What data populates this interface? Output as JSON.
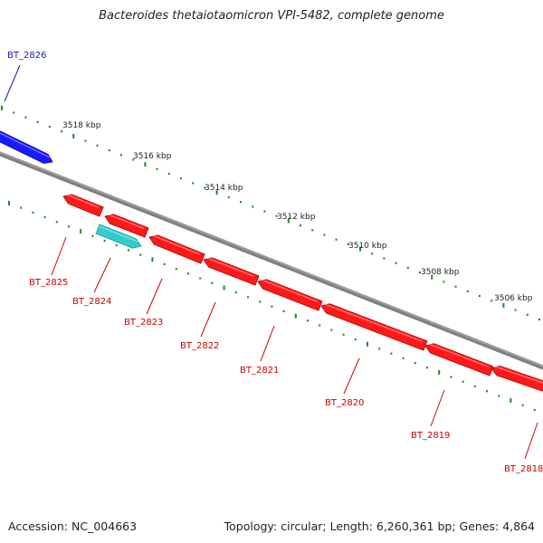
{
  "title": "Bacteroides thetaiotaomicron VPI-5482, complete genome",
  "accession": "Accession: NC_004663",
  "summary": "Topology: circular; Length: 6,260,361 bp; Genes: 4,864",
  "colors": {
    "backbone": "#808080",
    "tick": "#1f8a1f",
    "forward_gene": "#1a1aff",
    "reverse_gene": "#ff1a1a",
    "rna_gene": "#33cccc",
    "forward_label": "#1a1ab0",
    "reverse_label": "#cc0000"
  },
  "ticks": [
    {
      "label": "3518 kbp"
    },
    {
      "label": "3516 kbp"
    },
    {
      "label": "3514 kbp"
    },
    {
      "label": "3512 kbp"
    },
    {
      "label": "3510 kbp"
    },
    {
      "label": "3508 kbp"
    },
    {
      "label": "3506 kbp"
    }
  ],
  "genes": [
    {
      "name": "BT_2826",
      "strand": "forward"
    },
    {
      "name": "BT_2825",
      "strand": "reverse"
    },
    {
      "name": "BT_2824",
      "strand": "reverse",
      "rna": true
    },
    {
      "name": "BT_2823",
      "strand": "reverse"
    },
    {
      "name": "BT_2822",
      "strand": "reverse"
    },
    {
      "name": "BT_2821",
      "strand": "reverse"
    },
    {
      "name": "BT_2820",
      "strand": "reverse"
    },
    {
      "name": "BT_2819",
      "strand": "reverse"
    },
    {
      "name": "BT_2818",
      "strand": "reverse"
    }
  ]
}
